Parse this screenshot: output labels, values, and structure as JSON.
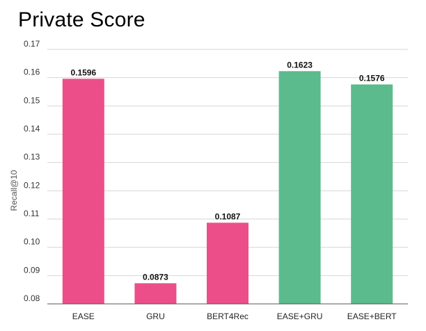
{
  "chart_data": {
    "type": "bar",
    "title": "Private Score",
    "xlabel": "",
    "ylabel": "Recall@10",
    "ylim": [
      0.08,
      0.17
    ],
    "yticks": [
      "0.08",
      "0.09",
      "0.10",
      "0.11",
      "0.12",
      "0.13",
      "0.14",
      "0.15",
      "0.16",
      "0.17"
    ],
    "grid": true,
    "categories": [
      "EASE",
      "GRU",
      "BERT4Rec",
      "EASE+GRU",
      "EASE+BERT"
    ],
    "values": [
      0.1596,
      0.0873,
      0.1087,
      0.1623,
      0.1576
    ],
    "value_labels": [
      "0.1596",
      "0.0873",
      "0.1087",
      "0.1623",
      "0.1576"
    ],
    "colors": [
      "#ec4e89",
      "#ec4e89",
      "#ec4e89",
      "#5bbb8d",
      "#5bbb8d"
    ]
  }
}
